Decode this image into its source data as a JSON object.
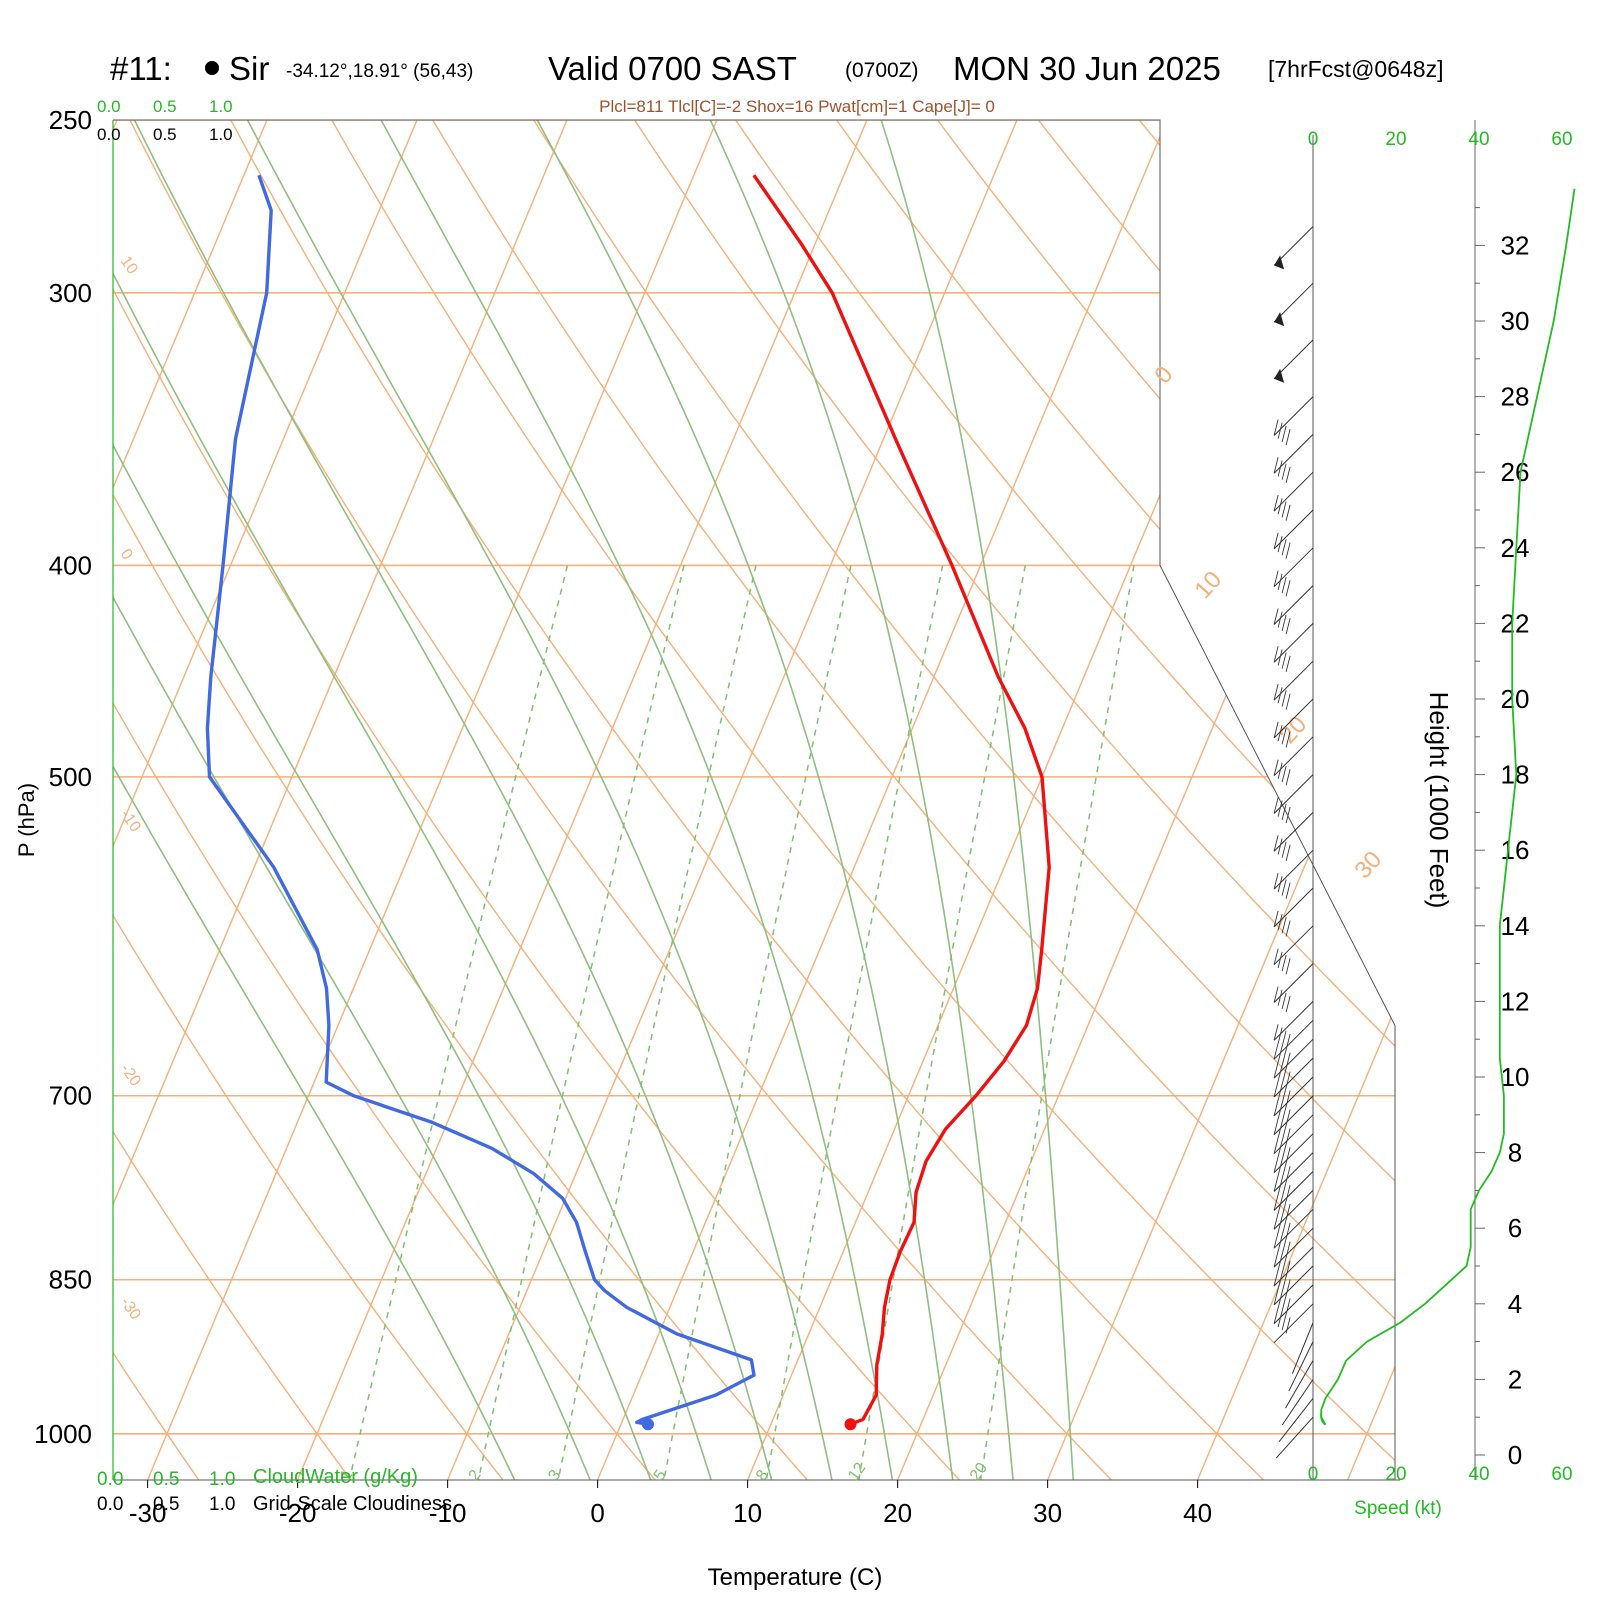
{
  "header": {
    "station": "#11:",
    "station_name": "Sir",
    "coords": "-34.12°,18.91° (56,43)",
    "valid": "Valid 0700 SAST",
    "zulu": "(0700Z)",
    "date": "MON 30 Jun 2025",
    "forecast": "[7hrFcst@0648z]",
    "indices": "Plcl=811 Tlcl[C]=-2 Shox=16 Pwat[cm]=1 Cape[J]= 0"
  },
  "axes": {
    "y_label": "P (hPa)",
    "x_label": "Temperature (C)",
    "height_label": "Height (1000 Feet)",
    "speed_label": "Speed (kt)",
    "cloud_label_top": "CloudWater (g/Kg)",
    "cloud_label_bottom": "Grid-Scale Cloudiness",
    "cloud_ticks": [
      "0.0",
      "0.5",
      "1.0"
    ],
    "pressure_ticks": [
      "250",
      "300",
      "400",
      "500",
      "700",
      "850",
      "1000"
    ],
    "temp_ticks": [
      "-30",
      "-20",
      "-10",
      "0",
      "10",
      "20",
      "30",
      "40"
    ],
    "height_ticks": [
      "0",
      "2",
      "4",
      "6",
      "8",
      "10",
      "12",
      "14",
      "16",
      "18",
      "20",
      "22",
      "24",
      "26",
      "28",
      "30",
      "32"
    ],
    "speed_ticks": [
      "0",
      "20",
      "40",
      "60"
    ],
    "isotherm_labels": [
      "10",
      "0",
      "-10",
      "-20",
      "-30"
    ],
    "isotherm_labels_right": [
      "0",
      "10",
      "20",
      "30"
    ],
    "mixing_ratio_labels": [
      "1",
      "2",
      "3",
      "5",
      "8",
      "12",
      "20"
    ]
  },
  "chart_data": {
    "type": "skew-t",
    "x_range_C": [
      -33,
      47
    ],
    "y_range_hPa": [
      250,
      1050
    ],
    "temperature_C": [
      {
        "p": 990,
        "t": 15.3
      },
      {
        "p": 985,
        "t": 16.0
      },
      {
        "p": 960,
        "t": 16.2
      },
      {
        "p": 930,
        "t": 15.4
      },
      {
        "p": 900,
        "t": 14.9
      },
      {
        "p": 875,
        "t": 14.3
      },
      {
        "p": 850,
        "t": 13.9
      },
      {
        "p": 825,
        "t": 13.8
      },
      {
        "p": 800,
        "t": 13.9
      },
      {
        "p": 775,
        "t": 13.2
      },
      {
        "p": 750,
        "t": 13.0
      },
      {
        "p": 725,
        "t": 13.4
      },
      {
        "p": 700,
        "t": 14.5
      },
      {
        "p": 675,
        "t": 15.4
      },
      {
        "p": 650,
        "t": 15.9
      },
      {
        "p": 625,
        "t": 15.6
      },
      {
        "p": 600,
        "t": 14.8
      },
      {
        "p": 550,
        "t": 13.0
      },
      {
        "p": 500,
        "t": 10.0
      },
      {
        "p": 475,
        "t": 7.5
      },
      {
        "p": 450,
        "t": 4.3
      },
      {
        "p": 400,
        "t": -1.9
      },
      {
        "p": 350,
        "t": -9.2
      },
      {
        "p": 300,
        "t": -17.5
      },
      {
        "p": 285,
        "t": -20.9
      },
      {
        "p": 275,
        "t": -23.4
      },
      {
        "p": 265,
        "t": -26.0
      }
    ],
    "dewpoint_C": [
      {
        "p": 990,
        "t": 1.8
      },
      {
        "p": 988,
        "t": 1.0
      },
      {
        "p": 985,
        "t": 1.3
      },
      {
        "p": 960,
        "t": 5.5
      },
      {
        "p": 940,
        "t": 7.5
      },
      {
        "p": 925,
        "t": 6.9
      },
      {
        "p": 900,
        "t": 1.2
      },
      {
        "p": 875,
        "t": -2.9
      },
      {
        "p": 860,
        "t": -4.8
      },
      {
        "p": 850,
        "t": -5.8
      },
      {
        "p": 825,
        "t": -7.2
      },
      {
        "p": 800,
        "t": -8.6
      },
      {
        "p": 780,
        "t": -10.2
      },
      {
        "p": 760,
        "t": -12.8
      },
      {
        "p": 740,
        "t": -16.3
      },
      {
        "p": 720,
        "t": -21.0
      },
      {
        "p": 700,
        "t": -27.0
      },
      {
        "p": 690,
        "t": -29.2
      },
      {
        "p": 650,
        "t": -30.6
      },
      {
        "p": 625,
        "t": -31.8
      },
      {
        "p": 600,
        "t": -33.5
      },
      {
        "p": 550,
        "t": -38.7
      },
      {
        "p": 500,
        "t": -45.5
      },
      {
        "p": 475,
        "t": -47.0
      },
      {
        "p": 450,
        "t": -48.2
      },
      {
        "p": 400,
        "t": -50.5
      },
      {
        "p": 350,
        "t": -53.2
      },
      {
        "p": 300,
        "t": -55.2
      },
      {
        "p": 275,
        "t": -57.2
      },
      {
        "p": 265,
        "t": -59.0
      }
    ],
    "wind_speed_profile": [
      {
        "h": 0.8,
        "kt": 3
      },
      {
        "h": 1.0,
        "kt": 2
      },
      {
        "h": 1.2,
        "kt": 2
      },
      {
        "h": 1.5,
        "kt": 3
      },
      {
        "h": 2.0,
        "kt": 6
      },
      {
        "h": 2.5,
        "kt": 8
      },
      {
        "h": 3.0,
        "kt": 13
      },
      {
        "h": 3.5,
        "kt": 21
      },
      {
        "h": 4.0,
        "kt": 27
      },
      {
        "h": 4.5,
        "kt": 32
      },
      {
        "h": 5.0,
        "kt": 37
      },
      {
        "h": 5.5,
        "kt": 38
      },
      {
        "h": 6.0,
        "kt": 38
      },
      {
        "h": 6.5,
        "kt": 38
      },
      {
        "h": 7.0,
        "kt": 40
      },
      {
        "h": 7.5,
        "kt": 43
      },
      {
        "h": 8.0,
        "kt": 45
      },
      {
        "h": 8.5,
        "kt": 46
      },
      {
        "h": 9.5,
        "kt": 46
      },
      {
        "h": 10.5,
        "kt": 45
      },
      {
        "h": 12.0,
        "kt": 45
      },
      {
        "h": 14.0,
        "kt": 45
      },
      {
        "h": 16.0,
        "kt": 47
      },
      {
        "h": 18.0,
        "kt": 49
      },
      {
        "h": 20.0,
        "kt": 48
      },
      {
        "h": 22.0,
        "kt": 48
      },
      {
        "h": 24.0,
        "kt": 49
      },
      {
        "h": 26.0,
        "kt": 50
      },
      {
        "h": 28.0,
        "kt": 54
      },
      {
        "h": 30.0,
        "kt": 58
      },
      {
        "h": 32.0,
        "kt": 61
      },
      {
        "h": 33.5,
        "kt": 63
      }
    ],
    "wind_barb_heights_kft": [
      1.0,
      1.5,
      2.0,
      2.5,
      3.0,
      3.5,
      4.0,
      4.5,
      5.0,
      5.5,
      6.0,
      6.5,
      7.0,
      7.5,
      8.0,
      8.5,
      9.0,
      9.5,
      10.0,
      10.5,
      11.0,
      11.5,
      12.0,
      13.0,
      14.0,
      15.0,
      16.0,
      17.0,
      18.0,
      19.0,
      20.0,
      21.0,
      22.0,
      23.0,
      24.0,
      25.0,
      26.0,
      27.0,
      28.0,
      29.5,
      31.0,
      32.5
    ]
  },
  "colors": {
    "isotherm": "#f5b07a",
    "dry_adiabat": "#f5b07a",
    "moist_adiabat": "#8fbf80",
    "mixing_ratio": "#7fbf70",
    "temperature": "#ee1111",
    "dewpoint": "#4169e1",
    "speed": "#22bb22",
    "label_green": "#2ab52a",
    "indices": "#a0522d"
  }
}
